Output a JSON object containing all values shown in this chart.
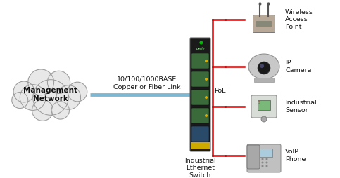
{
  "background_color": "#ffffff",
  "link_color": "#7cb8d4",
  "poe_line_color": "#cc0000",
  "cloud_color": "#e8e8e8",
  "cloud_edge_color": "#999999",
  "switch_body_color": "#1a1a1a",
  "switch_green": "#00bb00",
  "switch_yellow": "#ccaa00",
  "text_color": "#111111",
  "cloud_text": "Management\nNetwork",
  "link_label_line1": "10/100/1000BASE",
  "link_label_line2": "Copper or Fiber Link",
  "switch_label": "Industrial\nEthernet\nSwitch",
  "poe_label": "PoE",
  "device_labels": [
    "Wireless\nAccess\nPoint",
    "IP\nCamera",
    "Industrial\nSensor",
    "VoIP\nPhone"
  ],
  "font_size": 7.5,
  "font_size_small": 6.8
}
